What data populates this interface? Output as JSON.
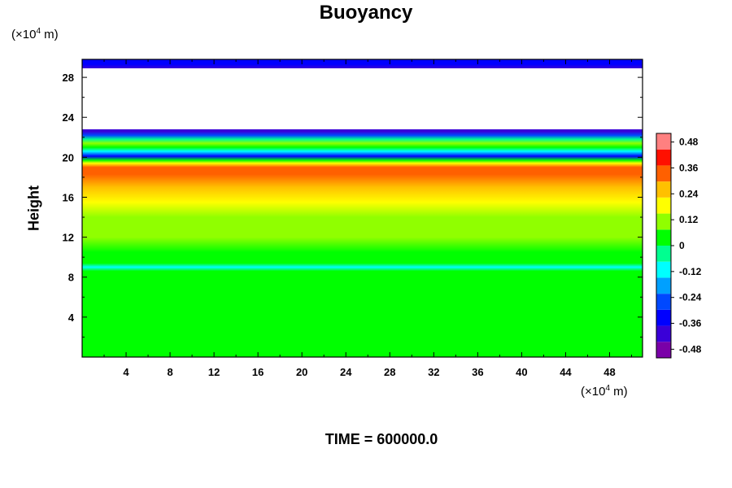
{
  "chart_data": {
    "type": "heatmap",
    "title": "Buoyancy",
    "ylabel": "Height",
    "xlabel": "",
    "x_unit": "(×10",
    "x_unit_exp": "4",
    "x_unit_tail": " m)",
    "y_unit": "(×10",
    "y_unit_exp": "4",
    "y_unit_tail": " m)",
    "footer": "TIME = 600000.0",
    "xlim": [
      0,
      51
    ],
    "ylim": [
      0,
      29.8
    ],
    "x_ticks": [
      4,
      8,
      12,
      16,
      20,
      24,
      28,
      32,
      36,
      40,
      44,
      48
    ],
    "y_ticks": [
      4,
      8,
      12,
      16,
      20,
      24,
      28
    ],
    "colorbar": {
      "range": [
        -0.52,
        0.52
      ],
      "ticks": [
        0.48,
        0.36,
        0.24,
        0.12,
        0,
        -0.12,
        -0.24,
        -0.36,
        -0.48
      ],
      "tick_labels": [
        "0.48",
        "0.36",
        "0.24",
        "0.12",
        "0",
        "-0.12",
        "-0.24",
        "-0.36",
        "-0.48"
      ]
    },
    "value_profile": [
      {
        "height": 0,
        "value": 0.0
      },
      {
        "height": 8.6,
        "value": 0.0
      },
      {
        "height": 9.0,
        "value": -0.12
      },
      {
        "height": 9.4,
        "value": 0.02
      },
      {
        "height": 10.5,
        "value": 0.04
      },
      {
        "height": 12.0,
        "value": 0.09
      },
      {
        "height": 14.0,
        "value": 0.14
      },
      {
        "height": 15.5,
        "value": 0.2
      },
      {
        "height": 17.0,
        "value": 0.3
      },
      {
        "height": 18.3,
        "value": 0.39
      },
      {
        "height": 19.0,
        "value": 0.38
      },
      {
        "height": 19.4,
        "value": 0.2
      },
      {
        "height": 19.7,
        "value": 0.02
      },
      {
        "height": 20.1,
        "value": -0.33
      },
      {
        "height": 20.6,
        "value": -0.16
      },
      {
        "height": 21.0,
        "value": 0.03
      },
      {
        "height": 21.4,
        "value": 0.1
      },
      {
        "height": 21.8,
        "value": -0.05
      },
      {
        "height": 22.2,
        "value": -0.25
      },
      {
        "height": 22.6,
        "value": -0.42
      },
      {
        "height": 22.8,
        "value": null
      },
      {
        "height": 28.6,
        "value": null
      },
      {
        "height": 28.9,
        "value": -0.47
      },
      {
        "height": 29.3,
        "value": -0.4
      },
      {
        "height": 29.8,
        "value": -0.4
      }
    ],
    "colors": {
      "scale": [
        "#7a00a8",
        "#3a00d8",
        "#0000ff",
        "#0048ff",
        "#00a0ff",
        "#00ffff",
        "#00ff90",
        "#00ff00",
        "#90ff00",
        "#ffff00",
        "#ffc000",
        "#ff6000",
        "#ff1000",
        "#ff8080"
      ]
    }
  }
}
